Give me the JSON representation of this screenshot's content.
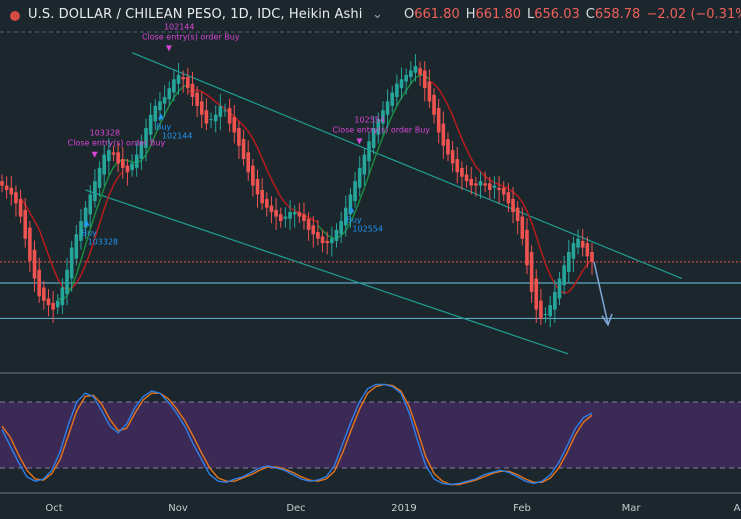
{
  "header": {
    "title": "U.S. DOLLAR / CHILEAN PESO, 1D, IDC, Heikin Ashi",
    "ohlc": [
      {
        "key": "O",
        "value": "661.80"
      },
      {
        "key": "H",
        "value": "661.80"
      },
      {
        "key": "L",
        "value": "656.03"
      },
      {
        "key": "C",
        "value": "658.78"
      }
    ],
    "change": "−2.02 (−0.31%)",
    "dropdown_icon": "chevron-down-icon"
  },
  "x_axis": {
    "labels": [
      {
        "text": "Oct",
        "center": 54
      },
      {
        "text": "Nov",
        "center": 178
      },
      {
        "text": "Dec",
        "center": 296
      },
      {
        "text": "2019",
        "center": 404
      },
      {
        "text": "Feb",
        "center": 522
      },
      {
        "text": "Mar",
        "center": 631
      },
      {
        "text": "A",
        "center": 737
      }
    ]
  },
  "annotations": {
    "order_labels": [
      {
        "text": "Close entry(s) order Buy",
        "color": "#d946d6"
      },
      {
        "text": "Close entry(s) order Buy",
        "color": "#d946d6"
      },
      {
        "text": "Close entry(s) order Buy",
        "color": "#d946d6"
      }
    ],
    "order_numbers": [
      "103328",
      "102144",
      "102554"
    ],
    "buy_labels": [
      {
        "text": "Buy",
        "id": "103328"
      },
      {
        "text": "Buy",
        "id": "102144"
      },
      {
        "text": "Buy",
        "id": "102554"
      }
    ]
  },
  "colors": {
    "background": "#1b262d",
    "bull": "#26a69a",
    "bear": "#ef5350",
    "ma_red": "#b71c1c",
    "ma_green": "#1b8a3c",
    "trend": "#1f9e93",
    "level": "#5da8c2",
    "oscillator_band": "#3a2a55",
    "osc_blue": "#2f7fe6",
    "osc_orange": "#e8751a",
    "arrow": "#7fa8d8",
    "buy_text": "#2196f3",
    "close_text": "#d946d6"
  },
  "chart_data": {
    "type": "candlestick",
    "symbol": "USDCLP",
    "timeframe": "1D",
    "style": "Heikin Ashi",
    "last_bar": {
      "open": 661.8,
      "high": 661.8,
      "low": 656.03,
      "close": 658.78,
      "change": -2.02,
      "change_pct": -0.31
    },
    "x_tick_labels": [
      "Oct",
      "Nov",
      "Dec",
      "2019",
      "Feb",
      "Mar"
    ],
    "ylim": [
      640,
      710
    ],
    "closes": [
      676,
      675,
      674,
      672,
      669,
      664,
      659,
      655,
      651,
      650,
      649,
      648,
      650,
      653,
      657,
      662,
      665,
      668,
      671,
      674,
      677,
      680,
      683,
      684,
      683,
      681,
      680,
      679,
      681,
      683,
      686,
      689,
      692,
      694,
      695,
      696,
      698,
      700,
      701,
      700,
      698,
      696,
      694,
      692,
      690,
      691,
      692,
      694,
      693,
      690,
      688,
      685,
      682,
      679,
      676,
      674,
      672,
      671,
      670,
      669,
      668,
      669,
      670,
      670,
      669,
      668,
      666,
      665,
      664,
      663,
      663,
      664,
      666,
      668,
      671,
      674,
      677,
      680,
      683,
      686,
      689,
      691,
      693,
      695,
      697,
      699,
      700,
      701,
      702,
      703,
      701,
      698,
      695,
      692,
      688,
      685,
      683,
      681,
      679,
      678,
      677,
      676,
      676,
      677,
      676,
      675,
      676,
      675,
      674,
      672,
      670,
      668,
      664,
      658,
      652,
      648,
      646,
      647,
      649,
      652,
      655,
      658,
      661,
      663,
      664,
      662,
      660,
      658.78
    ],
    "moving_averages": [
      {
        "color": "red",
        "role": "slow",
        "segment": "Sep–Oct and Jan–Feb"
      },
      {
        "color": "green",
        "role": "fast",
        "segment": "Oct–Nov and Dec–Jan"
      }
    ],
    "oscillator": {
      "type": "stochastic",
      "ylim": [
        0,
        100
      ],
      "band": [
        20,
        80
      ],
      "k_blue": [
        55,
        40,
        25,
        12,
        8,
        10,
        18,
        35,
        60,
        80,
        88,
        85,
        72,
        58,
        52,
        60,
        75,
        85,
        90,
        88,
        80,
        70,
        58,
        42,
        28,
        14,
        8,
        7,
        10,
        12,
        16,
        20,
        22,
        20,
        18,
        14,
        10,
        8,
        9,
        12,
        22,
        42,
        62,
        80,
        92,
        96,
        96,
        94,
        88,
        70,
        45,
        22,
        10,
        6,
        5,
        6,
        8,
        10,
        14,
        16,
        18,
        16,
        12,
        8,
        6,
        8,
        14,
        25,
        40,
        56,
        66,
        70
      ],
      "d_orange": [
        58,
        48,
        32,
        18,
        10,
        9,
        15,
        28,
        50,
        72,
        85,
        86,
        78,
        64,
        54,
        56,
        70,
        82,
        88,
        88,
        83,
        74,
        63,
        49,
        34,
        20,
        11,
        8,
        8,
        11,
        14,
        18,
        21,
        21,
        19,
        16,
        12,
        9,
        8,
        10,
        17,
        34,
        54,
        73,
        88,
        94,
        96,
        95,
        90,
        76,
        54,
        30,
        15,
        8,
        5,
        5,
        7,
        9,
        12,
        15,
        17,
        17,
        14,
        10,
        7,
        7,
        11,
        20,
        34,
        50,
        62,
        68
      ]
    },
    "levels": [
      {
        "name": "last-price-line",
        "value": 658.78
      },
      {
        "name": "support-1",
        "value": 654
      },
      {
        "name": "support-2",
        "value": 646
      }
    ]
  }
}
